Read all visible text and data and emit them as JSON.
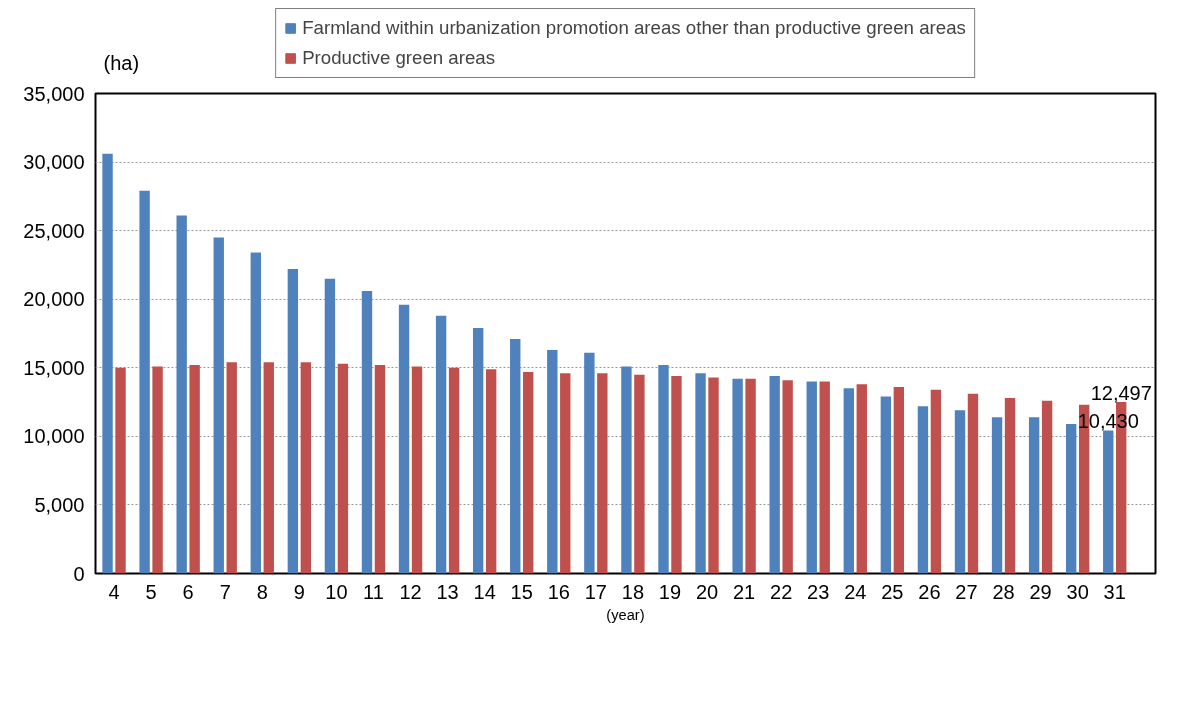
{
  "chart_data": {
    "type": "bar",
    "categories": [
      "4",
      "5",
      "6",
      "7",
      "8",
      "9",
      "10",
      "11",
      "12",
      "13",
      "14",
      "15",
      "16",
      "17",
      "18",
      "19",
      "20",
      "21",
      "22",
      "23",
      "24",
      "25",
      "26",
      "27",
      "28",
      "29",
      "30",
      "31"
    ],
    "ylabel": "(ha)",
    "xlabel": "(year)",
    "series": [
      {
        "name": "Farmland within urbanization promotion areas other than productive green areas",
        "color": "#4f81bd",
        "values": [
          30600,
          27900,
          26100,
          24500,
          23400,
          22200,
          21500,
          20600,
          19600,
          18800,
          17900,
          17100,
          16300,
          16100,
          15100,
          15200,
          14600,
          14200,
          14400,
          14000,
          13500,
          12900,
          12200,
          11900,
          11400,
          11400,
          10900,
          10430
        ],
        "value_labels": [
          null,
          null,
          null,
          null,
          null,
          null,
          null,
          null,
          null,
          null,
          null,
          null,
          null,
          null,
          null,
          null,
          null,
          null,
          null,
          null,
          null,
          null,
          null,
          null,
          null,
          null,
          null,
          "10,430"
        ]
      },
      {
        "name": "Productive green areas",
        "color": "#c0504d",
        "values": [
          15000,
          15100,
          15200,
          15400,
          15400,
          15400,
          15300,
          15200,
          15100,
          15000,
          14900,
          14700,
          14600,
          14600,
          14500,
          14400,
          14300,
          14200,
          14100,
          14000,
          13800,
          13600,
          13400,
          13100,
          12800,
          12600,
          12300,
          12497
        ],
        "value_labels": [
          null,
          null,
          null,
          null,
          null,
          null,
          null,
          null,
          null,
          null,
          null,
          null,
          null,
          null,
          null,
          null,
          null,
          null,
          null,
          null,
          null,
          null,
          null,
          null,
          null,
          null,
          null,
          "12,497"
        ]
      }
    ],
    "ylim": [
      0,
      35000
    ],
    "yticks": [
      {
        "value": 0,
        "label": "0"
      },
      {
        "value": 5000,
        "label": "5,000"
      },
      {
        "value": 10000,
        "label": "10,000"
      },
      {
        "value": 15000,
        "label": "15,000"
      },
      {
        "value": 20000,
        "label": "20,000"
      },
      {
        "value": 25000,
        "label": "25,000"
      },
      {
        "value": 30000,
        "label": "30,000"
      },
      {
        "value": 35000,
        "label": "35,000"
      }
    ],
    "grid": "y",
    "legend": "top"
  }
}
